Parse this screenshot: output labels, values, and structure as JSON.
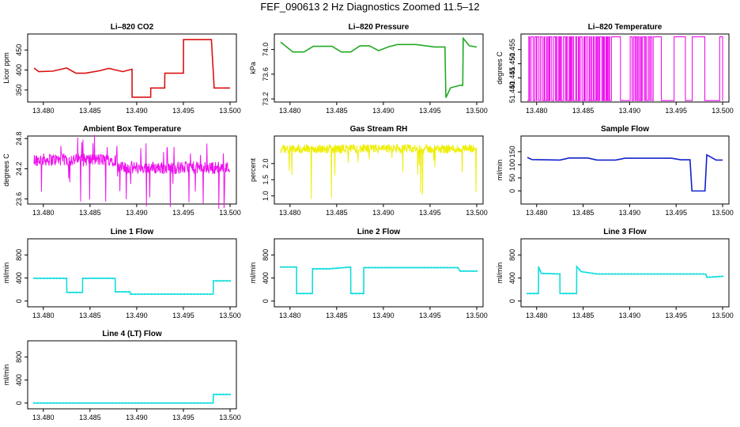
{
  "figure_title": "FEF_090613  2 Hz Diagnostics Zoomed 11.5–12",
  "chart_data": [
    {
      "type": "line",
      "title": "Li–820 CO2",
      "ylabel": "Licor ppm",
      "color": "#dd1111",
      "xlim": [
        13.479,
        13.5
      ],
      "ylim": [
        320,
        490
      ],
      "xticks": [
        "13.480",
        "13.485",
        "13.490",
        "13.495",
        "13.500"
      ],
      "yticks": [
        "350",
        "400",
        "450"
      ],
      "series": [
        {
          "name": "CO2",
          "x": [
            13.479,
            13.4795,
            13.481,
            13.4825,
            13.4835,
            13.4845,
            13.486,
            13.487,
            13.4885,
            13.4895,
            13.48951,
            13.491,
            13.4915,
            13.49151,
            13.493,
            13.49301,
            13.495,
            13.49501,
            13.498,
            13.4983,
            13.5
          ],
          "values": [
            405,
            396,
            397,
            405,
            392,
            392,
            398,
            404,
            396,
            402,
            332,
            332,
            332,
            355,
            355,
            392,
            392,
            476,
            476,
            355,
            355
          ]
        }
      ]
    },
    {
      "type": "line",
      "title": "Li–820 Pressure",
      "ylabel": "kPa",
      "color": "#22aa22",
      "xlim": [
        13.479,
        13.5
      ],
      "ylim": [
        73.15,
        74.25
      ],
      "xticks": [
        "13.480",
        "13.485",
        "13.490",
        "13.495",
        "13.500"
      ],
      "yticks": [
        "73.2",
        "73.6",
        "74.0"
      ],
      "series": [
        {
          "name": "Pressure",
          "x": [
            13.479,
            13.4803,
            13.4815,
            13.4825,
            13.4845,
            13.4855,
            13.4865,
            13.4875,
            13.4885,
            13.4895,
            13.4905,
            13.4915,
            13.4935,
            13.4955,
            13.4966,
            13.4967,
            13.4972,
            13.4982,
            13.4985,
            13.49855,
            13.4992,
            13.5
          ],
          "values": [
            74.12,
            73.96,
            73.96,
            74.05,
            74.05,
            73.96,
            73.96,
            74.06,
            74.06,
            73.98,
            74.04,
            74.08,
            74.08,
            74.04,
            74.04,
            73.22,
            73.38,
            73.42,
            73.42,
            74.18,
            74.06,
            74.04
          ]
        }
      ]
    },
    {
      "type": "line",
      "title": "Li–820 Temperature",
      "ylabel": "degrees C",
      "color": "#ee11ee",
      "xlim": [
        13.479,
        13.5
      ],
      "ylim": [
        51.4365,
        51.4605
      ],
      "xticks": [
        "13.480",
        "13.485",
        "13.490",
        "13.495",
        "13.500"
      ],
      "yticks": [
        "51.440",
        "51.445",
        "51.450",
        "51.455"
      ],
      "series": [
        {
          "name": "Temperature",
          "x": [],
          "values": []
        }
      ]
    },
    {
      "type": "line",
      "title": "Ambient Box Temperature",
      "ylabel": "degrees C",
      "color": "#ee11ee",
      "xlim": [
        13.479,
        13.5
      ],
      "ylim": [
        23.5,
        24.85
      ],
      "xticks": [
        "13.480",
        "13.485",
        "13.490",
        "13.495",
        "13.500"
      ],
      "yticks": [
        "23.6",
        "24.2",
        "24.8"
      ],
      "series": [
        {
          "name": "Ambient",
          "x": [],
          "values": []
        }
      ]
    },
    {
      "type": "line",
      "title": "Gas Stream RH",
      "ylabel": "percent",
      "color": "#eeee00",
      "xlim": [
        13.479,
        13.5
      ],
      "ylim": [
        0.75,
        2.85
      ],
      "xticks": [
        "13.480",
        "13.485",
        "13.490",
        "13.495",
        "13.500"
      ],
      "yticks": [
        "1.0",
        "1.5",
        "2.0"
      ],
      "series": [
        {
          "name": "RH",
          "x": [],
          "values": []
        }
      ]
    },
    {
      "type": "line",
      "title": "Sample Flow",
      "ylabel": "ml/min",
      "color": "#1122cc",
      "xlim": [
        13.479,
        13.5
      ],
      "ylim": [
        -50,
        210
      ],
      "xticks": [
        "13.480",
        "13.485",
        "13.490",
        "13.495",
        "13.500"
      ],
      "yticks": [
        "0",
        "50",
        "100",
        "150"
      ],
      "series": [
        {
          "name": "Sample Flow",
          "x": [
            13.479,
            13.4795,
            13.4825,
            13.4835,
            13.4855,
            13.4865,
            13.4885,
            13.4895,
            13.4945,
            13.4955,
            13.4965,
            13.4967,
            13.4981,
            13.4983,
            13.4993,
            13.5
          ],
          "values": [
            128,
            120,
            118,
            126,
            126,
            118,
            118,
            125,
            125,
            119,
            119,
            0,
            0,
            138,
            118,
            118
          ]
        }
      ]
    },
    {
      "type": "line",
      "title": "Line 1 Flow",
      "ylabel": "ml/min",
      "color": "#11dddd",
      "xlim": [
        13.479,
        13.5
      ],
      "ylim": [
        -100,
        1080
      ],
      "xticks": [
        "13.480",
        "13.485",
        "13.490",
        "13.495",
        "13.500"
      ],
      "yticks": [
        "0",
        "400",
        "800"
      ],
      "series": [
        {
          "name": "Line 1",
          "x": [
            13.479,
            13.4825,
            13.48251,
            13.4842,
            13.48421,
            13.4877,
            13.48771,
            13.4893,
            13.48931,
            13.4982,
            13.49821,
            13.5
          ],
          "values": [
            395,
            395,
            150,
            150,
            395,
            395,
            160,
            160,
            120,
            120,
            350,
            350
          ]
        }
      ]
    },
    {
      "type": "line",
      "title": "Line 2 Flow",
      "ylabel": "ml/min",
      "color": "#11dddd",
      "xlim": [
        13.479,
        13.5
      ],
      "ylim": [
        -100,
        1080
      ],
      "xticks": [
        "13.480",
        "13.485",
        "13.490",
        "13.495",
        "13.500"
      ],
      "yticks": [
        "0",
        "400",
        "800"
      ],
      "series": [
        {
          "name": "Line 2",
          "x": [
            13.479,
            13.4807,
            13.48071,
            13.4824,
            13.48241,
            13.4842,
            13.4865,
            13.48651,
            13.4879,
            13.48791,
            13.498,
            13.4982,
            13.5
          ],
          "values": [
            590,
            590,
            130,
            130,
            560,
            560,
            590,
            130,
            130,
            580,
            580,
            520,
            520
          ]
        }
      ]
    },
    {
      "type": "line",
      "title": "Line 3 Flow",
      "ylabel": "ml/min",
      "color": "#11dddd",
      "xlim": [
        13.479,
        13.5
      ],
      "ylim": [
        -100,
        1080
      ],
      "xticks": [
        "13.480",
        "13.485",
        "13.490",
        "13.495",
        "13.500"
      ],
      "yticks": [
        "0",
        "400",
        "800"
      ],
      "series": [
        {
          "name": "Line 3",
          "x": [
            13.479,
            13.4802,
            13.48021,
            13.4805,
            13.4825,
            13.48251,
            13.4843,
            13.48431,
            13.4848,
            13.4865,
            13.4982,
            13.4983,
            13.5
          ],
          "values": [
            130,
            130,
            600,
            480,
            470,
            130,
            130,
            600,
            510,
            470,
            470,
            410,
            430
          ]
        }
      ]
    },
    {
      "type": "line",
      "title": "Line 4 (LT) Flow",
      "ylabel": "ml/min",
      "color": "#11dddd",
      "xlim": [
        13.479,
        13.5
      ],
      "ylim": [
        -100,
        1080
      ],
      "xticks": [
        "13.480",
        "13.485",
        "13.490",
        "13.495",
        "13.500"
      ],
      "yticks": [
        "0",
        "400",
        "800"
      ],
      "series": [
        {
          "name": "Line 4",
          "x": [
            13.479,
            13.4982,
            13.49821,
            13.5
          ],
          "values": [
            0,
            0,
            150,
            150
          ]
        }
      ]
    }
  ]
}
